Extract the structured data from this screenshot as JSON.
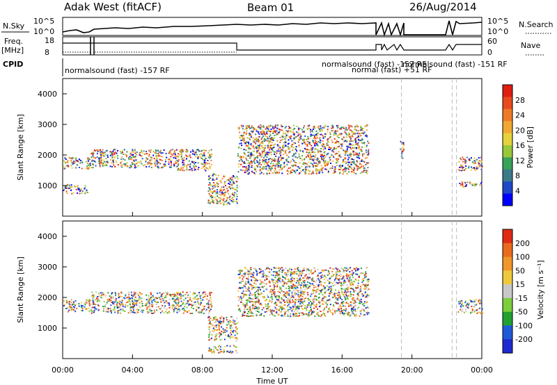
{
  "header": {
    "station": "Adak West (fitACF)",
    "beam": "Beam 01",
    "date": "26/Aug/2014"
  },
  "noise_panel": {
    "left_label": "N.Sky",
    "right_label": "N.Search",
    "yticks": [
      "10^5",
      "10^0"
    ],
    "right_yticks": [
      "10^5",
      "10^0"
    ]
  },
  "freq_panel": {
    "left_label_1": "Freq.",
    "left_label_2": "[MHz]",
    "right_label": "Nave",
    "yticks": [
      "18",
      "8"
    ],
    "right_yticks": [
      "60",
      "0"
    ]
  },
  "cpid_panel": {
    "label": "CPID",
    "entries": [
      "normalsound (fast) -157 RF",
      "normalsound (fast) -157 RF",
      "normal (fast) +51 RF",
      "normalsound (fast) -151 RF"
    ]
  },
  "time_axis": {
    "label": "Time UT",
    "ticks": [
      "00:00",
      "04:00",
      "08:00",
      "12:00",
      "16:00",
      "20:00",
      "00:00"
    ]
  },
  "chart_data": [
    {
      "type": "heatmap",
      "name": "power",
      "ylabel": "Slant Range [km]",
      "yticks": [
        "4000",
        "3000",
        "2000",
        "1000"
      ],
      "colorbar_label": "Power [dB]",
      "colorbar_ticks": [
        "28",
        "24",
        "20",
        "16",
        "12",
        "8",
        "4"
      ],
      "colors": [
        "#0000ff",
        "#1f47c8",
        "#3c7a8a",
        "#3aa15a",
        "#98c83a",
        "#e6d23c",
        "#f0a832",
        "#ee7a28",
        "#e84a1e",
        "#e01e12"
      ],
      "ranges": [
        {
          "start_hr": 0.0,
          "end_hr": 1.1,
          "min_km": 1550,
          "max_km": 1950
        },
        {
          "start_hr": 1.3,
          "end_hr": 1.55,
          "min_km": 1550,
          "max_km": 1950
        },
        {
          "start_hr": 0.0,
          "end_hr": 1.4,
          "min_km": 750,
          "max_km": 1050
        },
        {
          "start_hr": 1.6,
          "end_hr": 6.5,
          "min_km": 1600,
          "max_km": 2200
        },
        {
          "start_hr": 6.5,
          "end_hr": 8.5,
          "min_km": 1500,
          "max_km": 2200
        },
        {
          "start_hr": 8.3,
          "end_hr": 10.0,
          "min_km": 400,
          "max_km": 1400
        },
        {
          "start_hr": 10.0,
          "end_hr": 17.5,
          "min_km": 1400,
          "max_km": 3000
        },
        {
          "start_hr": 19.3,
          "end_hr": 19.5,
          "min_km": 1900,
          "max_km": 2500
        },
        {
          "start_hr": 22.6,
          "end_hr": 24.0,
          "min_km": 1500,
          "max_km": 1950
        },
        {
          "start_hr": 22.7,
          "end_hr": 24.0,
          "min_km": 950,
          "max_km": 1150
        }
      ]
    },
    {
      "type": "heatmap",
      "name": "velocity",
      "ylabel": "Slant Range [km]",
      "yticks": [
        "4000",
        "3000",
        "2000",
        "1000"
      ],
      "colorbar_label": "Velocity [m s⁻¹]",
      "colorbar_ticks": [
        "200",
        "100",
        "50",
        "15",
        "-15",
        "-50",
        "-100",
        "-200"
      ],
      "colors": [
        "#1e2acf",
        "#1e5ad8",
        "#21a032",
        "#7cce3c",
        "#c8c8c8",
        "#f0c83c",
        "#f0962a",
        "#ea6a1e",
        "#e02a14"
      ],
      "ranges": [
        {
          "start_hr": 0.0,
          "end_hr": 1.55,
          "min_km": 1550,
          "max_km": 1950
        },
        {
          "start_hr": 1.6,
          "end_hr": 8.5,
          "min_km": 1500,
          "max_km": 2200
        },
        {
          "start_hr": 8.3,
          "end_hr": 10.0,
          "min_km": 600,
          "max_km": 1400
        },
        {
          "start_hr": 8.3,
          "end_hr": 10.0,
          "min_km": 200,
          "max_km": 450
        },
        {
          "start_hr": 10.0,
          "end_hr": 17.5,
          "min_km": 1400,
          "max_km": 3000
        },
        {
          "start_hr": 22.6,
          "end_hr": 24.0,
          "min_km": 1500,
          "max_km": 1950
        }
      ]
    }
  ]
}
